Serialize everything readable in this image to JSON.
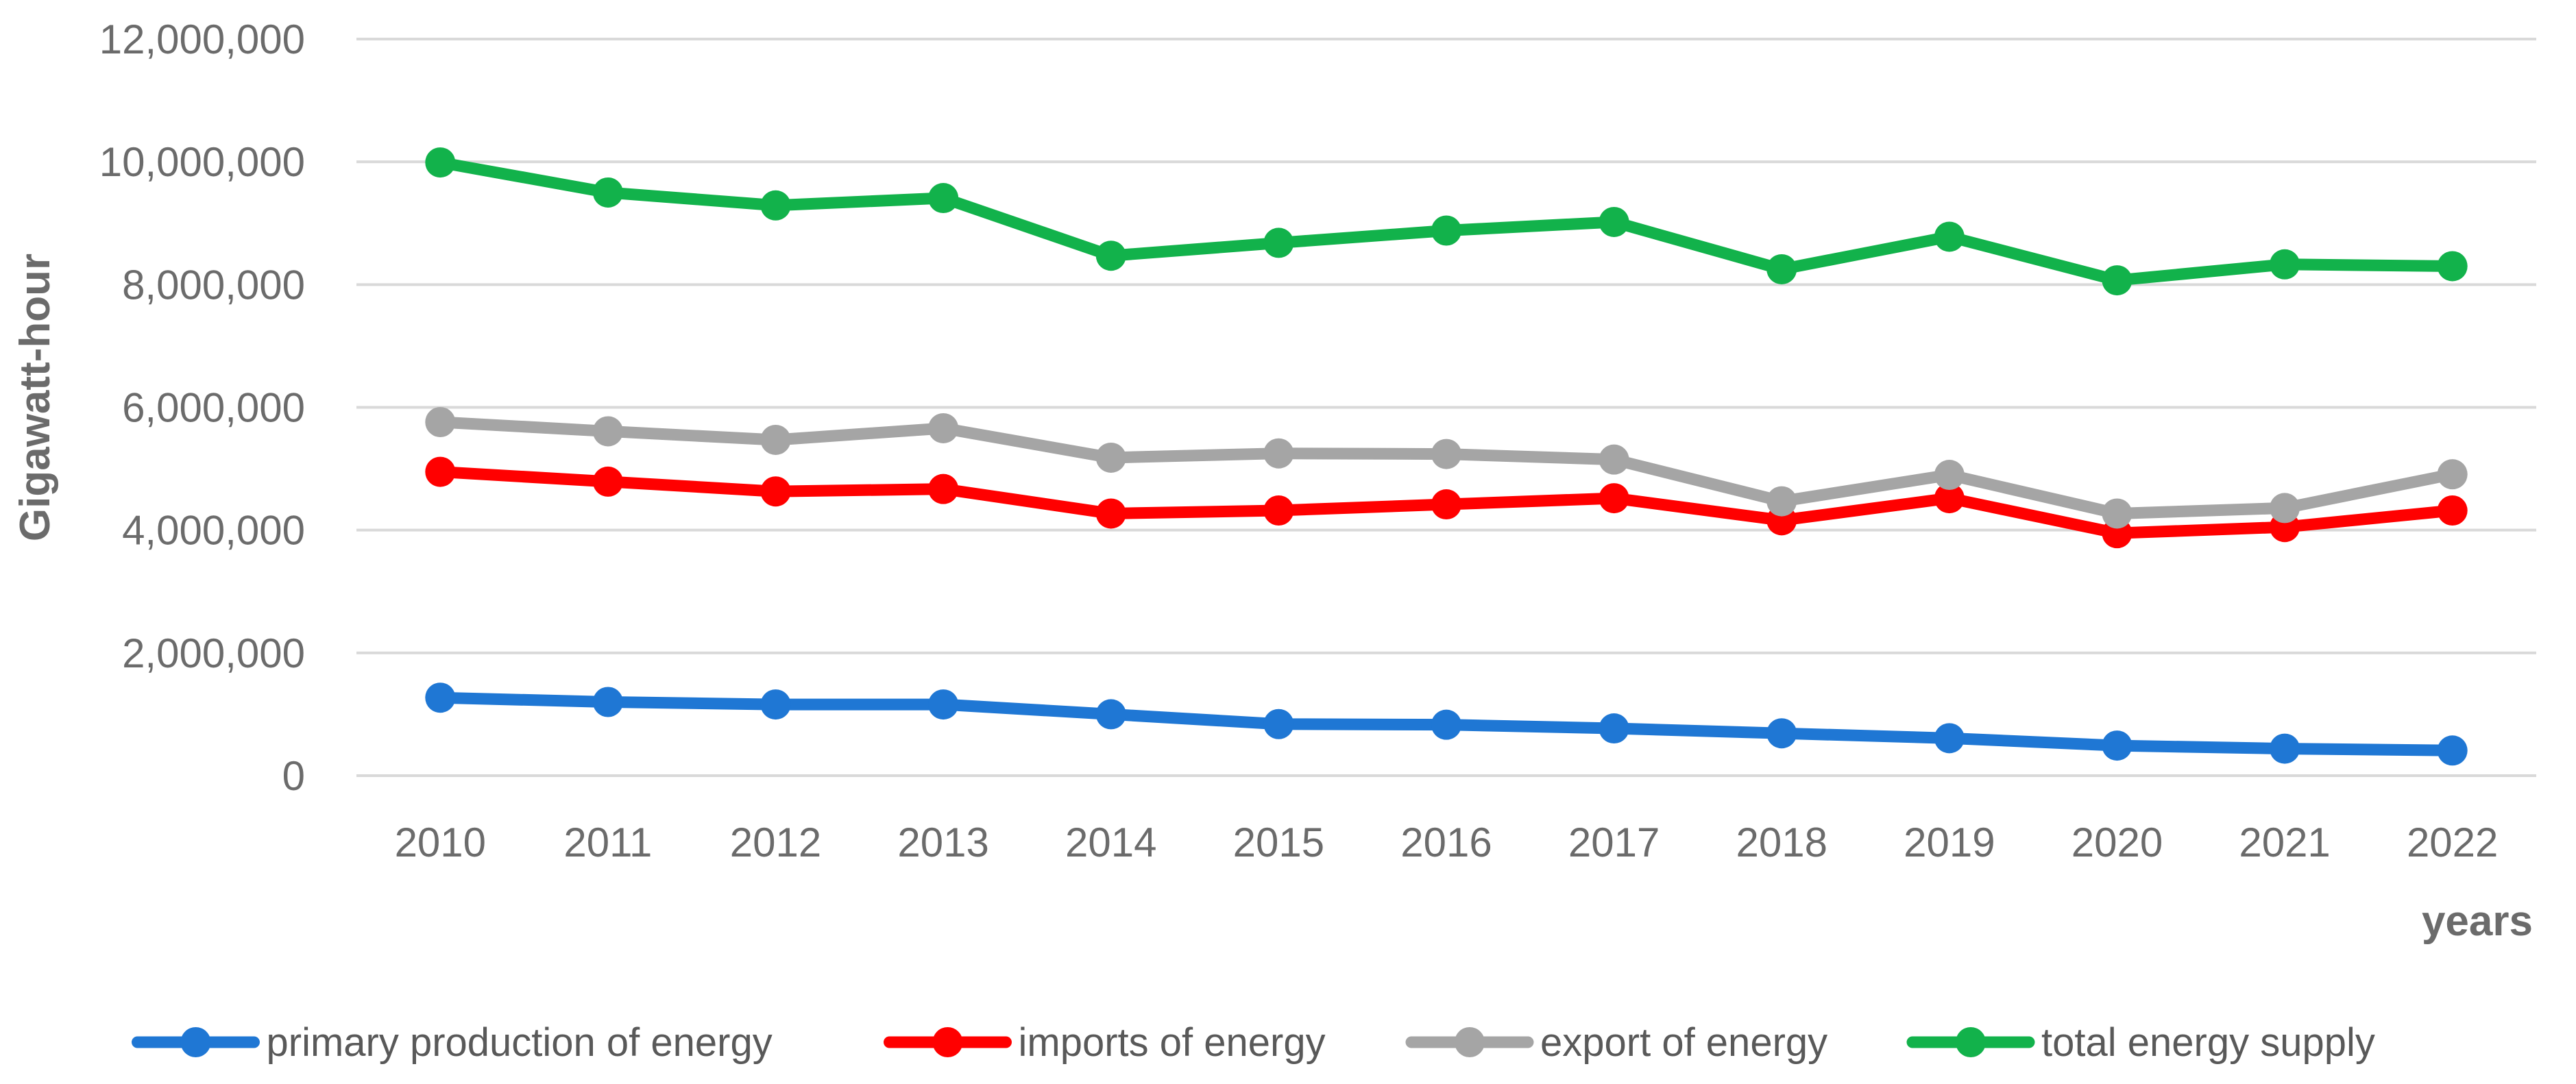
{
  "chart_data": {
    "type": "line",
    "title": "",
    "xlabel": "years",
    "ylabel": "Gigawatt-hour",
    "categories": [
      "2010",
      "2011",
      "2012",
      "2013",
      "2014",
      "2015",
      "2016",
      "2017",
      "2018",
      "2019",
      "2020",
      "2021",
      "2022"
    ],
    "ylim": [
      0,
      12000000
    ],
    "yticks": [
      0,
      2000000,
      4000000,
      6000000,
      8000000,
      10000000,
      12000000
    ],
    "ytick_labels": [
      "0",
      "2,000,000",
      "4,000,000",
      "6,000,000",
      "8,000,000",
      "10,000,000",
      "12,000,000"
    ],
    "grid": true,
    "legend_position": "bottom",
    "series": [
      {
        "name": "primary production of energy",
        "color": "#1f77d4",
        "values": [
          1270000,
          1200000,
          1160000,
          1160000,
          1000000,
          840000,
          830000,
          770000,
          690000,
          610000,
          490000,
          440000,
          410000
        ]
      },
      {
        "name": "imports of energy",
        "color": "#ff0000",
        "values": [
          4950000,
          4790000,
          4630000,
          4670000,
          4270000,
          4320000,
          4420000,
          4520000,
          4160000,
          4520000,
          3950000,
          4050000,
          4320000
        ]
      },
      {
        "name": "export of energy",
        "color": "#a5a5a5",
        "values": [
          5760000,
          5610000,
          5470000,
          5660000,
          5180000,
          5250000,
          5240000,
          5150000,
          4470000,
          4900000,
          4270000,
          4360000,
          4910000
        ]
      },
      {
        "name": "total energy supply",
        "color": "#12b24b",
        "values": [
          9990000,
          9500000,
          9290000,
          9410000,
          8470000,
          8680000,
          8880000,
          9020000,
          8250000,
          8780000,
          8070000,
          8330000,
          8300000
        ]
      }
    ]
  }
}
